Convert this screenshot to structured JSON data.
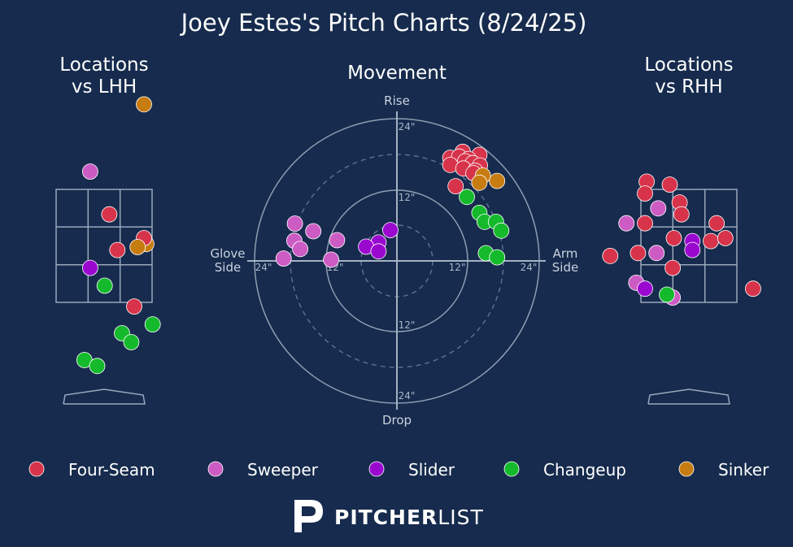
{
  "title": "Joey Estes's Pitch Charts (8/24/25)",
  "panels": {
    "lhh_title_line1": "Locations",
    "lhh_title_line2": "vs LHH",
    "movement_title": "Movement",
    "rhh_title_line1": "Locations",
    "rhh_title_line2": "vs RHH"
  },
  "movement_axes": {
    "top": "Rise",
    "bottom": "Drop",
    "left_line1": "Glove",
    "left_line2": "Side",
    "right_line1": "Arm",
    "right_line2": "Side",
    "ring_labels": {
      "top_outer": "24\"",
      "top_inner": "12\"",
      "bottom_inner": "12\"",
      "bottom_outer": "24\"",
      "left_outer": "24\"",
      "left_inner": "12\"",
      "right_inner": "12\"",
      "right_outer": "24\""
    }
  },
  "colors": {
    "background": "#162b4d",
    "Four-Seam": "#d7344b",
    "Sweeper": "#cc5cc4",
    "Slider": "#9a08d0",
    "Changeup": "#14ba2c",
    "Sinker": "#c77c12"
  },
  "legend": [
    {
      "label": "Four-Seam",
      "color": "#d7344b"
    },
    {
      "label": "Sweeper",
      "color": "#cc5cc4"
    },
    {
      "label": "Slider",
      "color": "#9a08d0"
    },
    {
      "label": "Changeup",
      "color": "#14ba2c"
    },
    {
      "label": "Sinker",
      "color": "#c77c12"
    }
  ],
  "brand": {
    "bold": "PITCHER",
    "light": "LIST"
  },
  "chart_data": [
    {
      "type": "scatter",
      "title": "Locations vs LHH",
      "x_range": [
        -1.5,
        1.5
      ],
      "z_range": [
        0,
        5.0
      ],
      "strike_zone": {
        "x": [
          -0.83,
          0.83
        ],
        "z": [
          1.5,
          3.4
        ]
      },
      "points": [
        {
          "pitch": "Sinker",
          "x": 0.69,
          "z": 4.83
        },
        {
          "pitch": "Sweeper",
          "x": -0.24,
          "z": 3.7
        },
        {
          "pitch": "Four-Seam",
          "x": 0.09,
          "z": 2.98
        },
        {
          "pitch": "Sinker",
          "x": 0.73,
          "z": 2.48
        },
        {
          "pitch": "Four-Seam",
          "x": 0.69,
          "z": 2.58
        },
        {
          "pitch": "Four-Seam",
          "x": 0.23,
          "z": 2.38
        },
        {
          "pitch": "Sinker",
          "x": 0.58,
          "z": 2.43
        },
        {
          "pitch": "Slider",
          "x": -0.24,
          "z": 2.08
        },
        {
          "pitch": "Changeup",
          "x": 0.01,
          "z": 1.78
        },
        {
          "pitch": "Four-Seam",
          "x": 0.52,
          "z": 1.43
        },
        {
          "pitch": "Changeup",
          "x": 0.84,
          "z": 1.13
        },
        {
          "pitch": "Changeup",
          "x": 0.31,
          "z": 0.98
        },
        {
          "pitch": "Changeup",
          "x": 0.47,
          "z": 0.83
        },
        {
          "pitch": "Changeup",
          "x": -0.34,
          "z": 0.53
        },
        {
          "pitch": "Changeup",
          "x": -0.12,
          "z": 0.43
        }
      ]
    },
    {
      "type": "scatter",
      "title": "Movement",
      "xlabel_left": "Glove Side",
      "xlabel_right": "Arm Side",
      "ylabel_top": "Rise",
      "ylabel_bottom": "Drop",
      "units": "inches",
      "range": [
        -24,
        24
      ],
      "rings": [
        6,
        12,
        18,
        24
      ],
      "points": [
        {
          "pitch": "Four-Seam",
          "x": 11.1,
          "y": 18.4
        },
        {
          "pitch": "Four-Seam",
          "x": 13.9,
          "y": 17.9
        },
        {
          "pitch": "Four-Seam",
          "x": 9.0,
          "y": 17.4
        },
        {
          "pitch": "Four-Seam",
          "x": 10.5,
          "y": 17.6
        },
        {
          "pitch": "Four-Seam",
          "x": 12.1,
          "y": 17.2
        },
        {
          "pitch": "Four-Seam",
          "x": 11.5,
          "y": 16.8
        },
        {
          "pitch": "Four-Seam",
          "x": 12.8,
          "y": 16.5
        },
        {
          "pitch": "Four-Seam",
          "x": 14.0,
          "y": 16.1
        },
        {
          "pitch": "Four-Seam",
          "x": 9.0,
          "y": 16.2
        },
        {
          "pitch": "Four-Seam",
          "x": 11.2,
          "y": 15.6
        },
        {
          "pitch": "Four-Seam",
          "x": 13.2,
          "y": 15.2
        },
        {
          "pitch": "Four-Seam",
          "x": 12.9,
          "y": 14.8
        },
        {
          "pitch": "Four-Seam",
          "x": 9.9,
          "y": 12.6
        },
        {
          "pitch": "Sinker",
          "x": 14.5,
          "y": 14.4
        },
        {
          "pitch": "Sinker",
          "x": 13.9,
          "y": 13.2
        },
        {
          "pitch": "Sinker",
          "x": 16.9,
          "y": 13.5
        },
        {
          "pitch": "Changeup",
          "x": 11.8,
          "y": 10.8
        },
        {
          "pitch": "Changeup",
          "x": 13.9,
          "y": 8.1
        },
        {
          "pitch": "Changeup",
          "x": 14.8,
          "y": 6.6
        },
        {
          "pitch": "Changeup",
          "x": 16.7,
          "y": 6.6
        },
        {
          "pitch": "Changeup",
          "x": 17.6,
          "y": 5.1
        },
        {
          "pitch": "Changeup",
          "x": 15.0,
          "y": 1.3
        },
        {
          "pitch": "Changeup",
          "x": 16.9,
          "y": 0.6
        },
        {
          "pitch": "Slider",
          "x": -1.1,
          "y": 5.2
        },
        {
          "pitch": "Slider",
          "x": -3.1,
          "y": 3.1
        },
        {
          "pitch": "Slider",
          "x": -5.2,
          "y": 2.4
        },
        {
          "pitch": "Slider",
          "x": -3.1,
          "y": 1.6
        },
        {
          "pitch": "Sweeper",
          "x": -17.2,
          "y": 6.3
        },
        {
          "pitch": "Sweeper",
          "x": -14.1,
          "y": 5.0
        },
        {
          "pitch": "Sweeper",
          "x": -17.3,
          "y": 3.4
        },
        {
          "pitch": "Sweeper",
          "x": -10.1,
          "y": 3.5
        },
        {
          "pitch": "Sweeper",
          "x": -16.3,
          "y": 2.0
        },
        {
          "pitch": "Sweeper",
          "x": -19.1,
          "y": 0.4
        },
        {
          "pitch": "Sweeper",
          "x": -11.1,
          "y": 0.2
        }
      ]
    },
    {
      "type": "scatter",
      "title": "Locations vs RHH",
      "x_range": [
        -1.5,
        1.5
      ],
      "z_range": [
        0,
        5.0
      ],
      "strike_zone": {
        "x": [
          -0.83,
          0.83
        ],
        "z": [
          1.5,
          3.4
        ]
      },
      "points": [
        {
          "pitch": "Four-Seam",
          "x": -0.73,
          "z": 3.53
        },
        {
          "pitch": "Four-Seam",
          "x": -0.33,
          "z": 3.48
        },
        {
          "pitch": "Four-Seam",
          "x": -0.76,
          "z": 3.33
        },
        {
          "pitch": "Four-Seam",
          "x": -0.16,
          "z": 3.18
        },
        {
          "pitch": "Four-Seam",
          "x": -0.13,
          "z": 2.98
        },
        {
          "pitch": "Sweeper",
          "x": -0.53,
          "z": 3.08
        },
        {
          "pitch": "Sweeper",
          "x": -1.08,
          "z": 2.83
        },
        {
          "pitch": "Four-Seam",
          "x": -0.76,
          "z": 2.83
        },
        {
          "pitch": "Four-Seam",
          "x": 0.48,
          "z": 2.83
        },
        {
          "pitch": "Four-Seam",
          "x": -0.26,
          "z": 2.58
        },
        {
          "pitch": "Four-Seam",
          "x": 0.38,
          "z": 2.53
        },
        {
          "pitch": "Four-Seam",
          "x": 0.63,
          "z": 2.58
        },
        {
          "pitch": "Slider",
          "x": 0.06,
          "z": 2.53
        },
        {
          "pitch": "Slider",
          "x": 0.06,
          "z": 2.38
        },
        {
          "pitch": "Four-Seam",
          "x": -1.36,
          "z": 2.28
        },
        {
          "pitch": "Four-Seam",
          "x": -0.88,
          "z": 2.33
        },
        {
          "pitch": "Sweeper",
          "x": -0.56,
          "z": 2.33
        },
        {
          "pitch": "Four-Seam",
          "x": -0.28,
          "z": 2.08
        },
        {
          "pitch": "Sweeper",
          "x": -0.91,
          "z": 1.83
        },
        {
          "pitch": "Slider",
          "x": -0.76,
          "z": 1.73
        },
        {
          "pitch": "Sweeper",
          "x": -0.28,
          "z": 1.58
        },
        {
          "pitch": "Changeup",
          "x": -0.38,
          "z": 1.63
        },
        {
          "pitch": "Four-Seam",
          "x": 1.11,
          "z": 1.73
        }
      ]
    }
  ]
}
